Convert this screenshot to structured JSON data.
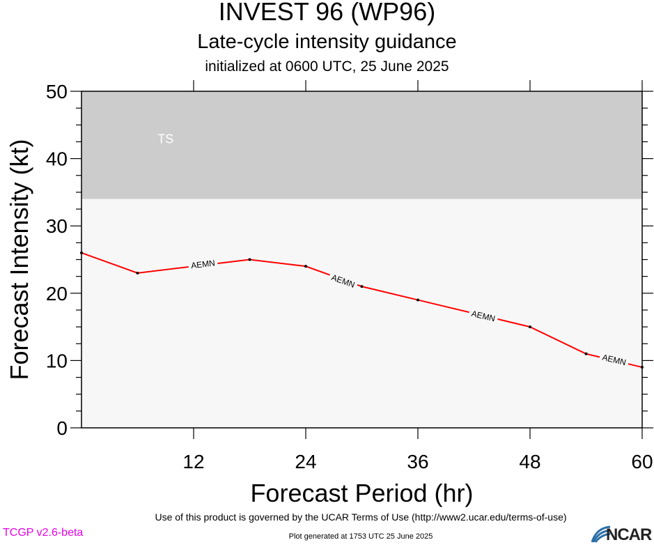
{
  "chart_data": {
    "type": "line",
    "title": "INVEST 96 (WP96)",
    "subtitle": "Late-cycle intensity guidance",
    "init_text": "initialized at 0600 UTC, 25 June 2025",
    "xlabel": "Forecast Period (hr)",
    "ylabel": "Forecast Intensity (kt)",
    "xlim": [
      0,
      60
    ],
    "ylim": [
      0,
      50
    ],
    "xticks": [
      12,
      24,
      36,
      48,
      60
    ],
    "yticks": [
      0,
      10,
      20,
      30,
      40,
      50
    ],
    "band": {
      "label": "TS",
      "y_from": 34,
      "y_to": 50,
      "color": "#cccccc"
    },
    "series": [
      {
        "name": "AEMN",
        "color": "#ff0000",
        "x": [
          0,
          6,
          12,
          18,
          24,
          30,
          36,
          42,
          48,
          54,
          60
        ],
        "values": [
          26,
          23,
          24,
          25,
          24,
          21,
          19,
          17,
          15,
          11,
          9
        ]
      }
    ],
    "curve_labels": [
      {
        "text": "AEMN",
        "x": 13,
        "y": 24.3
      },
      {
        "text": "AEMN",
        "x": 28,
        "y": 21.8
      },
      {
        "text": "AEMN",
        "x": 43,
        "y": 16.6
      },
      {
        "text": "AEMN",
        "x": 57,
        "y": 10.1
      }
    ]
  },
  "footer": {
    "terms": "Use of this product is governed by the UCAR Terms of Use (http://www2.ucar.edu/terms-of-use)",
    "generated": "Plot generated at 1753 UTC   25 June 2025",
    "version": "TCGP v2.6-beta",
    "logo_text": "NCAR"
  }
}
